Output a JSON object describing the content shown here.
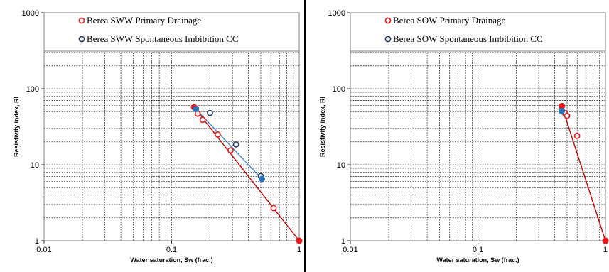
{
  "chart_data": [
    {
      "type": "scatter",
      "title": "",
      "xlabel": "Water saturation, Sw (frac.)",
      "ylabel": "Resistivity index, RI",
      "xscale": "log",
      "yscale": "log",
      "xlim": [
        0.01,
        1
      ],
      "ylim": [
        1,
        1000
      ],
      "x_ticks": [
        "0.01",
        "0.1",
        "1"
      ],
      "y_ticks": [
        "1",
        "10",
        "100",
        "1000"
      ],
      "grid": true,
      "legend_position": "top",
      "series": [
        {
          "name": "Berea SWW Primary Drainage",
          "marker": "open-circle",
          "color": "#e8181a",
          "points": [
            [
              0.155,
              55
            ],
            [
              0.16,
              47
            ],
            [
              0.175,
              39
            ],
            [
              0.23,
              25
            ],
            [
              0.29,
              15.5
            ],
            [
              0.63,
              2.7
            ]
          ]
        },
        {
          "name": "Berea SWW Spontaneous Imbibition CC",
          "marker": "open-circle",
          "color": "#1f3864",
          "points": [
            [
              0.2,
              48
            ],
            [
              0.32,
              18.5
            ],
            [
              0.5,
              7.1
            ]
          ]
        },
        {
          "name": "",
          "marker": "filled-circle",
          "color": "#e8181a",
          "points": [
            [
              0.15,
              57
            ],
            [
              1.0,
              1.0
            ]
          ]
        },
        {
          "name": "",
          "marker": "filled-circle",
          "color": "#2e75b6",
          "points": [
            [
              0.155,
              54
            ],
            [
              0.51,
              6.5
            ]
          ]
        },
        {
          "name": "",
          "type": "line",
          "color": "#c00000",
          "points": [
            [
              0.15,
              57
            ],
            [
              1.0,
              1.0
            ]
          ]
        },
        {
          "name": "",
          "type": "line",
          "color": "#4a86c8",
          "points": [
            [
              0.155,
              54
            ],
            [
              0.51,
              6.5
            ]
          ]
        }
      ]
    },
    {
      "type": "scatter",
      "title": "",
      "xlabel": "Water saturation, Sw (frac.)",
      "ylabel": "Resistivity index, RI",
      "xscale": "log",
      "yscale": "log",
      "xlim": [
        0.01,
        1
      ],
      "ylim": [
        1,
        1000
      ],
      "x_ticks": [
        "0.01",
        "0.1",
        "1"
      ],
      "y_ticks": [
        "1",
        "10",
        "100",
        "1000"
      ],
      "grid": true,
      "legend_position": "top",
      "series": [
        {
          "name": "Berea SOW Primary Drainage",
          "marker": "open-circle",
          "color": "#e8181a",
          "points": [
            [
              0.48,
              48
            ],
            [
              0.5,
              44
            ],
            [
              0.6,
              24
            ]
          ]
        },
        {
          "name": "Berea SOW Spontaneous Imbibition CC",
          "marker": "open-circle",
          "color": "#1f3864",
          "points": [
            [
              0.455,
              52
            ]
          ]
        },
        {
          "name": "",
          "marker": "filled-circle",
          "color": "#e8181a",
          "points": [
            [
              0.455,
              59
            ],
            [
              1.0,
              1.0
            ]
          ]
        },
        {
          "name": "",
          "marker": "filled-circle",
          "color": "#2e75b6",
          "points": [
            [
              0.455,
              51
            ]
          ]
        },
        {
          "name": "",
          "type": "line",
          "color": "#c00000",
          "points": [
            [
              0.455,
              59
            ],
            [
              1.0,
              1.0
            ]
          ]
        }
      ]
    }
  ]
}
